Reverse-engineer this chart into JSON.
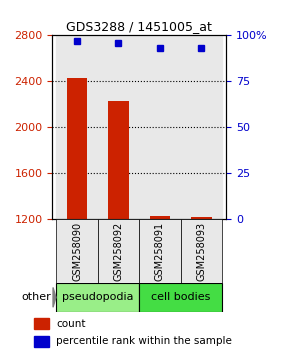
{
  "title": "GDS3288 / 1451005_at",
  "samples": [
    "GSM258090",
    "GSM258092",
    "GSM258091",
    "GSM258093"
  ],
  "groups": [
    "pseudopodia",
    "pseudopodia",
    "cell bodies",
    "cell bodies"
  ],
  "bar_values": [
    2430,
    2230,
    1230,
    1225
  ],
  "dot_values": [
    97,
    96,
    93,
    93
  ],
  "ylim_left": [
    1200,
    2800
  ],
  "ylim_right": [
    0,
    100
  ],
  "yticks_left": [
    1200,
    1600,
    2000,
    2400,
    2800
  ],
  "yticks_right": [
    0,
    25,
    50,
    75,
    100
  ],
  "bar_color": "#cc2200",
  "dot_color": "#0000cc",
  "bar_bottom": 1200,
  "group_colors": {
    "pseudopodia": "#99ee88",
    "cell bodies": "#44dd44"
  },
  "group_label_color": "black",
  "bg_color": "#e8e8e8",
  "plot_bg": "white",
  "title_color": "black",
  "left_tick_color": "#cc2200",
  "right_tick_color": "#0000cc",
  "legend_count_label": "count",
  "legend_pct_label": "percentile rank within the sample",
  "other_label": "other",
  "gridline_color": "black"
}
